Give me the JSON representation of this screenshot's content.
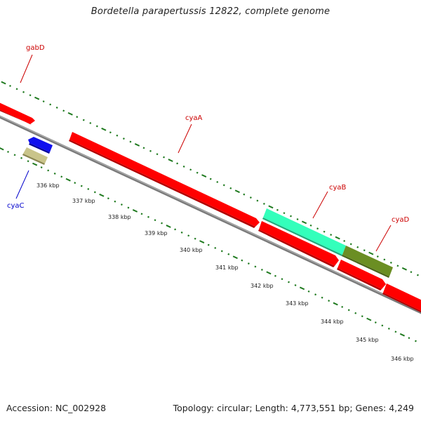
{
  "title": "Bordetella parapertussis 12822, complete genome",
  "footer": {
    "accession": "Accession: NC_002928",
    "summary": "Topology: circular; Length: 4,773,551 bp; Genes: 4,249"
  },
  "colors": {
    "cds": "#ff0000",
    "cds_dark": "#c40000",
    "backbone": "#8a8a8a",
    "ticks": "#1f7a1f",
    "cyaA_label": "#cc0000",
    "cyaC_label": "#0000cc",
    "blue_gene": "#1010ee",
    "khaki_gene": "#c9c48a",
    "cyan_gene": "#33ffbb",
    "olive_gene": "#6b8e23"
  },
  "genes": [
    {
      "name": "gabD",
      "color": "#cc0000"
    },
    {
      "name": "cyaA",
      "color": "#cc0000"
    },
    {
      "name": "cyaB",
      "color": "#cc0000"
    },
    {
      "name": "cyaD",
      "color": "#cc0000"
    },
    {
      "name": "cyaC",
      "color": "#0000cc"
    }
  ],
  "scale": {
    "unit": "kbp",
    "labels": [
      "336 kbp",
      "337 kbp",
      "338 kbp",
      "339 kbp",
      "340 kbp",
      "341 kbp",
      "342 kbp",
      "343 kbp",
      "344 kbp",
      "345 kbp",
      "346 kbp"
    ]
  }
}
